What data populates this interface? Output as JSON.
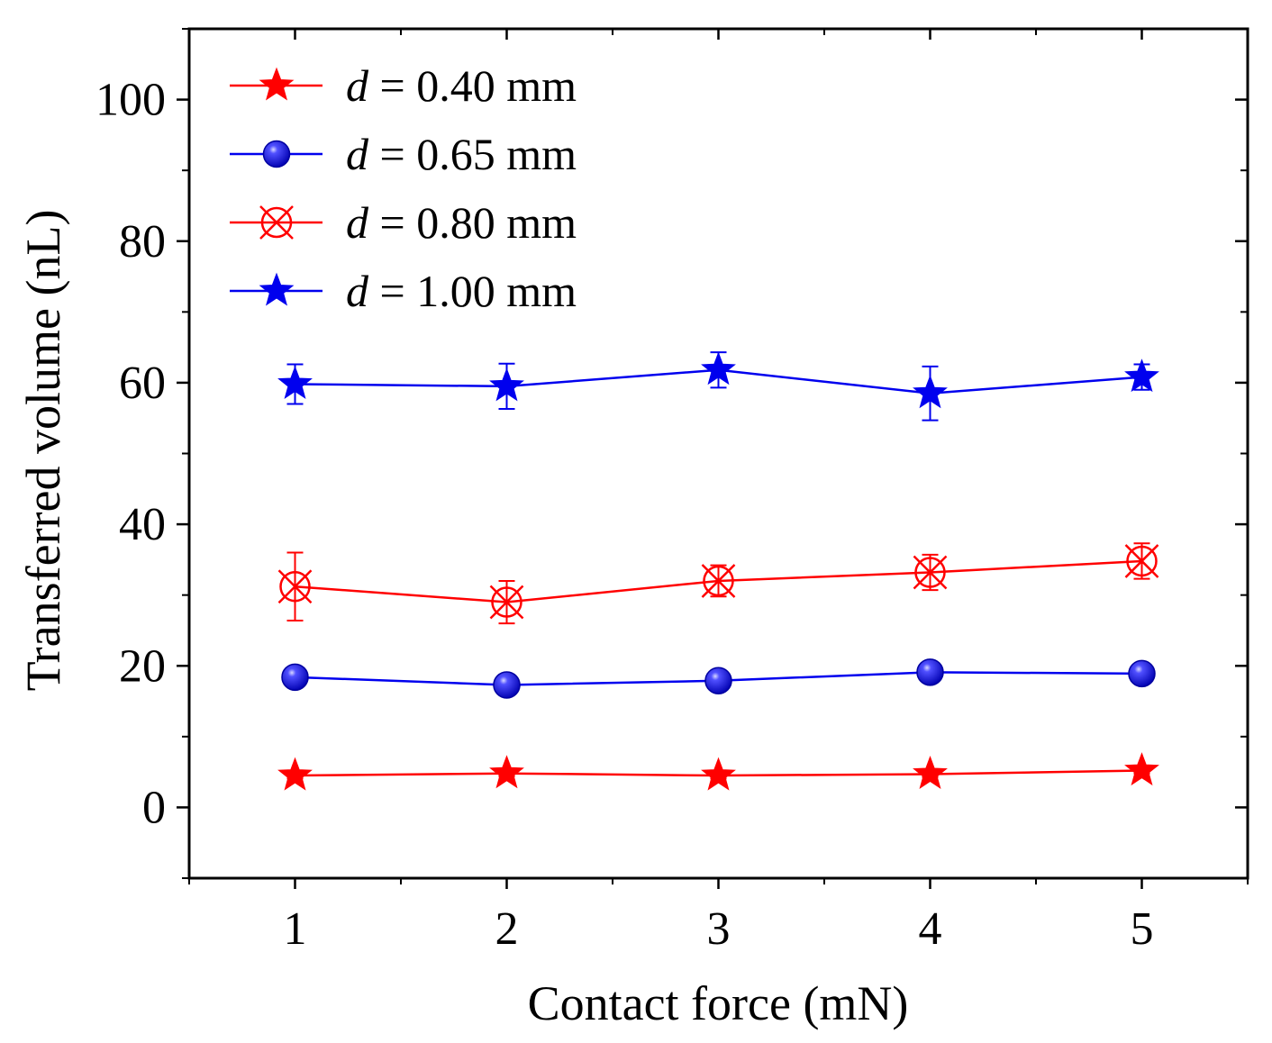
{
  "chart_data": {
    "type": "line",
    "xlabel": "Contact force (mN)",
    "ylabel": "Transferred volume (nL)",
    "xlim": [
      0.5,
      5.5
    ],
    "ylim": [
      -10,
      110
    ],
    "xticks": [
      1,
      2,
      3,
      4,
      5
    ],
    "yticks": [
      0,
      20,
      40,
      60,
      80,
      100
    ],
    "x": [
      1,
      2,
      3,
      4,
      5
    ],
    "legend_position": "top-left",
    "grid": false,
    "series": [
      {
        "name": "d = 0.40 mm",
        "label_var": "d",
        "label_rest": " = 0.40 mm",
        "color": "#ff0000",
        "marker": "filled-star",
        "values": [
          4.5,
          4.8,
          4.5,
          4.7,
          5.2
        ],
        "errors": [
          0.4,
          0.4,
          0.4,
          0.4,
          0.4
        ]
      },
      {
        "name": "d = 0.65 mm",
        "label_var": "d",
        "label_rest": " = 0.65 mm",
        "color": "#0000ee",
        "marker": "sphere",
        "values": [
          18.4,
          17.3,
          17.9,
          19.1,
          18.9
        ],
        "errors": [
          0.6,
          0.6,
          0.6,
          0.6,
          0.6
        ]
      },
      {
        "name": "d = 0.80 mm",
        "label_var": "d",
        "label_rest": " = 0.80 mm",
        "color": "#ff0000",
        "marker": "crossed-circle",
        "values": [
          31.2,
          29.0,
          32.0,
          33.2,
          34.8
        ],
        "errors": [
          4.8,
          3.0,
          2.2,
          2.5,
          2.5
        ]
      },
      {
        "name": "d = 1.00 mm",
        "label_var": "d",
        "label_rest": " = 1.00 mm",
        "color": "#0000ee",
        "marker": "filled-star",
        "values": [
          59.8,
          59.5,
          61.8,
          58.5,
          60.8
        ],
        "errors": [
          2.8,
          3.2,
          2.5,
          3.8,
          1.8
        ]
      }
    ]
  }
}
